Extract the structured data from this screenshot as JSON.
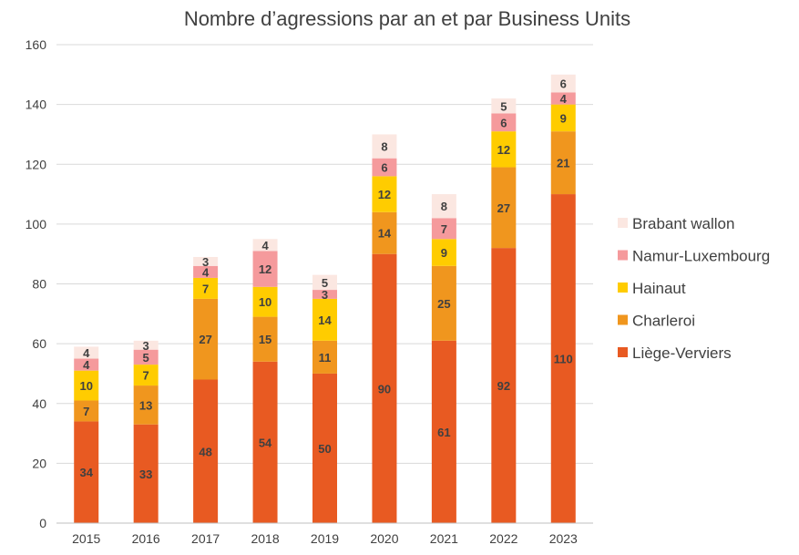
{
  "chart_data": {
    "type": "bar",
    "stacked": true,
    "title": "Nombre d’agressions par an et par Business Units",
    "categories": [
      "2015",
      "2016",
      "2017",
      "2018",
      "2019",
      "2020",
      "2021",
      "2022",
      "2023"
    ],
    "ylim": [
      0,
      160
    ],
    "yticks": [
      0,
      20,
      40,
      60,
      80,
      100,
      120,
      140,
      160
    ],
    "grid": true,
    "legend_position": "right",
    "series": [
      {
        "name": "Liège-Verviers",
        "color": "#E85A22",
        "values": [
          34,
          33,
          48,
          54,
          50,
          90,
          61,
          92,
          110
        ]
      },
      {
        "name": "Charleroi",
        "color": "#F0961E",
        "values": [
          7,
          13,
          27,
          15,
          11,
          14,
          25,
          27,
          21
        ]
      },
      {
        "name": "Hainaut",
        "color": "#FFCC00",
        "values": [
          10,
          7,
          7,
          10,
          14,
          12,
          9,
          12,
          9
        ]
      },
      {
        "name": "Namur-Luxembourg",
        "color": "#F59A9C",
        "values": [
          4,
          5,
          4,
          12,
          3,
          6,
          7,
          6,
          4
        ]
      },
      {
        "name": "Brabant wallon",
        "color": "#FBE7E1",
        "values": [
          4,
          3,
          3,
          4,
          5,
          8,
          8,
          5,
          6
        ]
      }
    ]
  }
}
